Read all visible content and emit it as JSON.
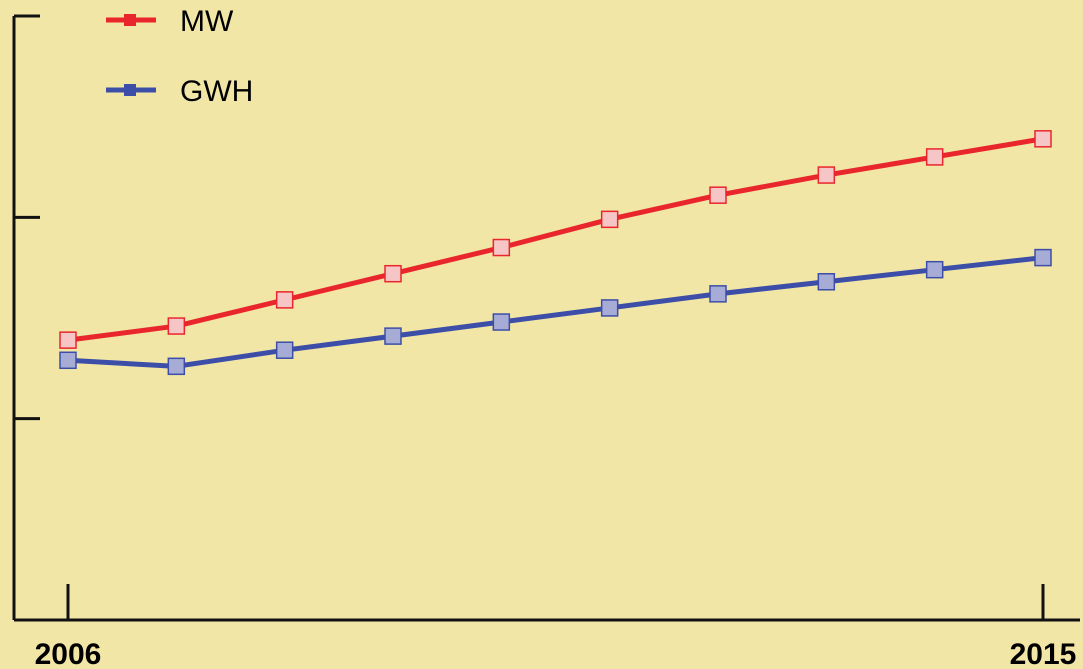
{
  "chart_data": {
    "type": "line",
    "title": "",
    "xlabel": "",
    "ylabel": "",
    "x": [
      2006,
      2007,
      2008,
      2009,
      2010,
      2011,
      2012,
      2013,
      2014,
      2015
    ],
    "x_tick_labels": [
      "2006",
      "2015"
    ],
    "ylim": [
      0,
      3
    ],
    "y_tick_values": [
      1,
      2
    ],
    "series": [
      {
        "name": "MW",
        "color": "#e8262c",
        "marker_fill": "#f6c6c6",
        "values": [
          1.39,
          1.46,
          1.59,
          1.72,
          1.85,
          1.99,
          2.11,
          2.21,
          2.3,
          2.39
        ]
      },
      {
        "name": "GWH",
        "color": "#3c4ea8",
        "marker_fill": "#a6acd6",
        "values": [
          1.29,
          1.26,
          1.34,
          1.41,
          1.48,
          1.55,
          1.62,
          1.68,
          1.74,
          1.8
        ]
      }
    ],
    "legend_position": "top-left",
    "grid": false
  }
}
